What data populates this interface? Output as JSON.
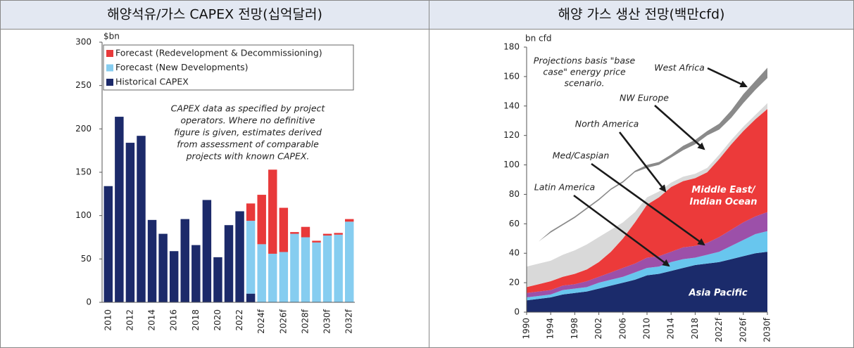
{
  "chart_data": [
    {
      "type": "bar",
      "stacked": true,
      "title": "해양석유/가스 CAPEX 전망(십억달러)",
      "unit": "$bn",
      "categories": [
        "2010",
        null,
        "2012",
        null,
        "2014",
        null,
        "2016",
        null,
        "2018",
        null,
        "2020",
        null,
        "2022",
        null,
        "2024f",
        null,
        "2026f",
        null,
        "2028f",
        null,
        "2030f",
        null,
        "2032f"
      ],
      "series": [
        {
          "name": "Forecast (Redevelopment & Decommissioning)",
          "color": "#e8393a",
          "values": [
            null,
            null,
            null,
            null,
            null,
            null,
            null,
            null,
            null,
            null,
            null,
            null,
            null,
            20,
            57,
            97,
            51,
            2,
            12,
            2,
            2,
            2,
            3
          ]
        },
        {
          "name": "Forecast (New Developments)",
          "color": "#86cdf0",
          "values": [
            null,
            null,
            null,
            null,
            null,
            null,
            null,
            null,
            null,
            null,
            null,
            null,
            null,
            84,
            67,
            56,
            58,
            79,
            75,
            69,
            77,
            78,
            93
          ]
        },
        {
          "name": "Historical CAPEX",
          "color": "#1c2a6a",
          "values": [
            134,
            214,
            184,
            192,
            95,
            79,
            59,
            96,
            66,
            118,
            52,
            89,
            105,
            10,
            null,
            null,
            null,
            null,
            null,
            null,
            null,
            null,
            null
          ]
        }
      ],
      "ylim": [
        0,
        300
      ],
      "yticks": [
        0,
        50,
        100,
        150,
        200,
        250,
        300
      ],
      "annotation": [
        "CAPEX data as specified by project",
        "operators. Where no definitive",
        "figure is given, estimates derived",
        "from assessment of comparable",
        "projects with known CAPEX."
      ]
    },
    {
      "type": "area",
      "stacked": true,
      "title": "해양 가스 생산 전망(백만cfd)",
      "unit": "bn cfd",
      "x": [
        1990,
        1992,
        1994,
        1996,
        1998,
        2000,
        2002,
        2004,
        2006,
        2008,
        2010,
        2012,
        2014,
        2016,
        2018,
        2020,
        2022,
        2024,
        2026,
        2028,
        2030
      ],
      "series": [
        {
          "name": "Asia Pacific",
          "color": "#1b2b6b",
          "values": [
            8,
            9,
            10,
            12,
            13,
            14,
            16,
            18,
            20,
            22,
            25,
            26,
            28,
            30,
            32,
            33,
            34,
            36,
            38,
            40,
            41
          ]
        },
        {
          "name": "Latin America",
          "color": "#68c6ee",
          "values": [
            2,
            2,
            2,
            3,
            3,
            3,
            4,
            4,
            4,
            5,
            5,
            5,
            6,
            6,
            5,
            6,
            7,
            9,
            11,
            13,
            14
          ]
        },
        {
          "name": "Med/Caspian",
          "color": "#9c50a9",
          "values": [
            3,
            3,
            3,
            3,
            3,
            4,
            4,
            5,
            6,
            6,
            7,
            7,
            7,
            8,
            8,
            8,
            10,
            11,
            12,
            12,
            13
          ]
        },
        {
          "name": "Middle East/ Indian Ocean",
          "color": "#ec3a3a",
          "values": [
            4,
            5,
            6,
            6,
            7,
            8,
            10,
            14,
            20,
            28,
            36,
            40,
            44,
            45,
            46,
            48,
            53,
            58,
            62,
            66,
            70
          ]
        },
        {
          "name": "North America",
          "color": "#d9d9d9",
          "values": [
            14,
            14,
            14,
            15,
            16,
            17,
            17,
            15,
            11,
            7,
            5,
            4,
            3,
            3,
            3,
            3,
            3,
            3,
            3,
            3,
            4
          ]
        },
        {
          "name": "NW Europe",
          "color": "#ffffff",
          "values": [
            12,
            15,
            19,
            20,
            22,
            24,
            25,
            27,
            27,
            27,
            20,
            18,
            17,
            18,
            20,
            22,
            17,
            15,
            16,
            17,
            17
          ]
        },
        {
          "name": "West Africa",
          "color": "#8a8a8a",
          "values": [
            0,
            0,
            1,
            1,
            1,
            1,
            1,
            1,
            1,
            1,
            2,
            2,
            2,
            3,
            3,
            3,
            4,
            5,
            6,
            6,
            7
          ]
        }
      ],
      "xlim": [
        1990,
        2030
      ],
      "xticks": [
        1990,
        1994,
        1998,
        2002,
        2006,
        2010,
        2014,
        2018,
        {
          "value": 2022,
          "label": "2022f"
        },
        {
          "value": 2026,
          "label": "2026f"
        },
        {
          "value": 2030,
          "label": "2030f"
        }
      ],
      "ylim": [
        0,
        180
      ],
      "yticks": [
        0,
        20,
        40,
        60,
        80,
        100,
        120,
        140,
        160,
        180
      ],
      "annotation": [
        "Projections basis \"base",
        "case\" energy price",
        "scenario."
      ]
    }
  ]
}
